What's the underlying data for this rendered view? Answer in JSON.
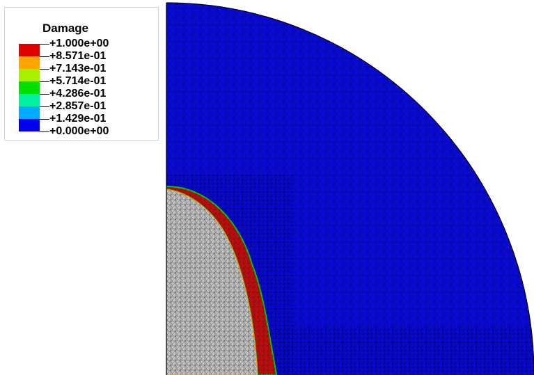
{
  "legend": {
    "title": "Damage",
    "levels": [
      {
        "label": "+1.000e+00",
        "color": "#e00000"
      },
      {
        "label": "+8.571e-01",
        "color": "#ffa500"
      },
      {
        "label": "+7.143e-01",
        "color": "#a8f000"
      },
      {
        "label": "+5.714e-01",
        "color": "#00e000"
      },
      {
        "label": "+4.286e-01",
        "color": "#00f0a0"
      },
      {
        "label": "+2.857e-01",
        "color": "#00aaff"
      },
      {
        "label": "+1.429e-01",
        "color": "#0000ee"
      },
      {
        "label": "+0.000e+00",
        "color": ""
      }
    ]
  },
  "colors": {
    "domain_fill": "#0a0ad0",
    "damaged_fill": "#c80a0a",
    "removed_fill": "#c4c4c4",
    "mesh_line": "#000000",
    "interface_line": "#00d000"
  }
}
